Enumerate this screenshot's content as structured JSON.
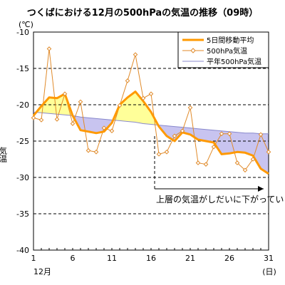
{
  "chart_data": {
    "type": "line",
    "title": "つくばにおける12月の500hPaの気温の推移（09時）",
    "ylabel_top": "(℃)",
    "ylabel": "気温",
    "xlabel_suffix": "(日)",
    "month_label": "12月",
    "annotation": "上層の気温がしだいに下がっていく",
    "xlim": [
      1,
      31
    ],
    "ylim": [
      -40,
      -10
    ],
    "x_ticks": [
      "1",
      "6",
      "11",
      "16",
      "21",
      "26",
      "31"
    ],
    "y_ticks": [
      "-10",
      "-15",
      "-20",
      "-25",
      "-30",
      "-35",
      "-40"
    ],
    "grid": "horizontal-dashed",
    "legend_position": "top-right",
    "colors": {
      "moving_avg": "#ff9900",
      "daily": "#e08a2a",
      "normal": "#8888cc",
      "fill_above": "#ffff99",
      "fill_below": "#c8c4f0"
    },
    "x": [
      1,
      2,
      3,
      4,
      5,
      6,
      7,
      8,
      9,
      10,
      11,
      12,
      13,
      14,
      15,
      16,
      17,
      18,
      19,
      20,
      21,
      22,
      23,
      24,
      25,
      26,
      27,
      28,
      29,
      30,
      31
    ],
    "series": [
      {
        "name": "5日間移動平均",
        "values": [
          -21.5,
          -20.2,
          -19.0,
          -19.1,
          -18.5,
          -21.5,
          -23.5,
          -23.7,
          -23.9,
          -23.7,
          -22.5,
          -20.0,
          -19.0,
          -18.2,
          -19.5,
          -21.0,
          -23.0,
          -24.3,
          -25.0,
          -23.8,
          -24.1,
          -24.8,
          -25.0,
          -25.2,
          -26.8,
          -26.7,
          -26.5,
          -26.6,
          -27.0,
          -28.8,
          -29.5
        ]
      },
      {
        "name": "500hPa気温",
        "values": [
          -21.8,
          -22.1,
          -12.3,
          -22.0,
          -18.5,
          -22.6,
          -19.6,
          -26.3,
          -26.5,
          -23.2,
          -23.6,
          -20.1,
          -16.7,
          -13.1,
          -19.1,
          -18.5,
          -26.8,
          -26.5,
          -24.3,
          -23.6,
          -20.4,
          -28.0,
          -28.2,
          -25.8,
          -24.0,
          -24.0,
          -28.0,
          -29.0,
          -27.5,
          -24.1,
          -26.5
        ]
      },
      {
        "name": "平年500hPa気温",
        "values": [
          -21.0,
          -21.1,
          -21.2,
          -21.3,
          -21.4,
          -21.5,
          -21.7,
          -21.8,
          -21.9,
          -22.0,
          -22.1,
          -22.2,
          -22.3,
          -22.4,
          -22.6,
          -22.7,
          -22.8,
          -22.9,
          -23.0,
          -23.1,
          -23.2,
          -23.3,
          -23.4,
          -23.5,
          -23.6,
          -23.7,
          -23.8,
          -23.9,
          -23.9,
          -24.0,
          -24.0
        ]
      }
    ]
  }
}
